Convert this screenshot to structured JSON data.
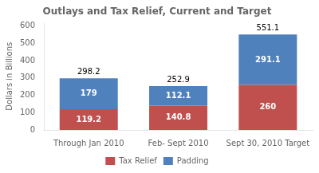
{
  "chart_data": {
    "type": "bar",
    "title": "Outlays and Tax Relief, Current and Target",
    "categories": [
      "Through Jan 2010",
      "Feb- Sept 2010",
      "Sept 30, 2010 Target"
    ],
    "series": [
      {
        "name": "Tax Relief",
        "color": "#C0504D",
        "values": [
          119.2,
          140.8,
          260
        ]
      },
      {
        "name": "Padding",
        "color": "#4F81BD",
        "values": [
          179,
          112.1,
          291.1
        ]
      }
    ],
    "totals": [
      298.2,
      252.9,
      551.1
    ],
    "stacked": true,
    "data_labels": true,
    "ylabel": "Dollars in Billions",
    "ylim": [
      0,
      620
    ],
    "yticks": [
      0,
      100,
      200,
      300,
      400,
      500,
      600
    ],
    "grid": false,
    "legend": "bottom"
  }
}
